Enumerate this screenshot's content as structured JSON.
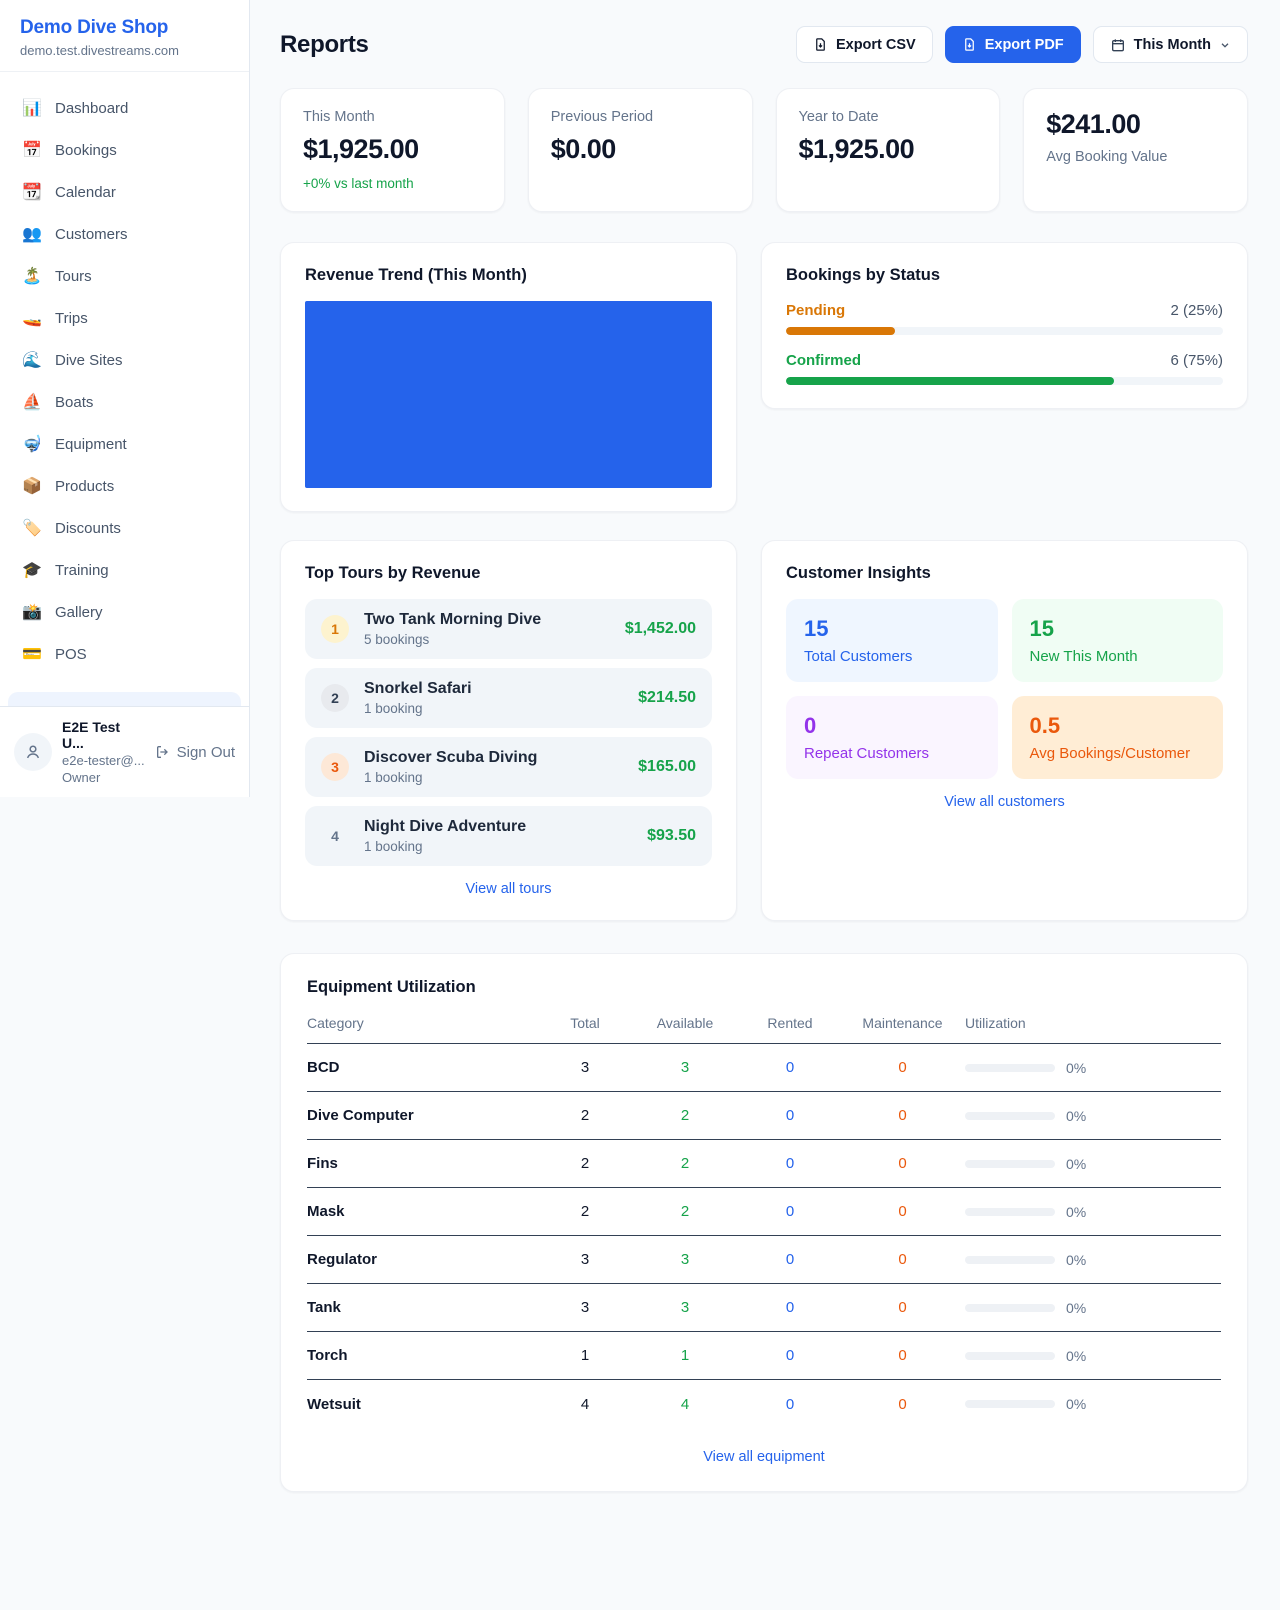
{
  "brand": {
    "name": "Demo Dive Shop",
    "domain": "demo.test.divestreams.com"
  },
  "sidebar": {
    "items": [
      {
        "name": "sidebar-item-dashboard",
        "icon_name": "bar-chart-icon",
        "icon": "📊",
        "label": "Dashboard"
      },
      {
        "name": "sidebar-item-bookings",
        "icon_name": "calendar-icon",
        "icon": "📅",
        "label": "Bookings"
      },
      {
        "name": "sidebar-item-calendar",
        "icon_name": "tear-off-calendar-icon",
        "icon": "📆",
        "label": "Calendar"
      },
      {
        "name": "sidebar-item-customers",
        "icon_name": "people-icon",
        "icon": "👥",
        "label": "Customers"
      },
      {
        "name": "sidebar-item-tours",
        "icon_name": "island-icon",
        "icon": "🏝️",
        "label": "Tours"
      },
      {
        "name": "sidebar-item-trips",
        "icon_name": "speedboat-icon",
        "icon": "🚤",
        "label": "Trips"
      },
      {
        "name": "sidebar-item-dive-sites",
        "icon_name": "wave-icon",
        "icon": "🌊",
        "label": "Dive Sites"
      },
      {
        "name": "sidebar-item-boats",
        "icon_name": "sailboat-icon",
        "icon": "⛵",
        "label": "Boats"
      },
      {
        "name": "sidebar-item-equipment",
        "icon_name": "diving-mask-icon",
        "icon": "🤿",
        "label": "Equipment"
      },
      {
        "name": "sidebar-item-products",
        "icon_name": "package-icon",
        "icon": "📦",
        "label": "Products"
      },
      {
        "name": "sidebar-item-discounts",
        "icon_name": "tag-icon",
        "icon": "🏷️",
        "label": "Discounts"
      },
      {
        "name": "sidebar-item-training",
        "icon_name": "graduation-cap-icon",
        "icon": "🎓",
        "label": "Training"
      },
      {
        "name": "sidebar-item-pos",
        "icon_name": "credit-card-icon",
        "icon": "💳",
        "label": "POS",
        "gallery_fix": ""
      }
    ],
    "gallery_item": {
      "name": "sidebar-item-gallery",
      "icon_name": "camera-icon",
      "icon": "📸",
      "label": "Gallery"
    },
    "user": {
      "name": "E2E Test U...",
      "email": "e2e-tester@...",
      "role": "Owner",
      "sign_out": "Sign Out"
    }
  },
  "header": {
    "title": "Reports",
    "export_csv_label": "Export CSV",
    "export_pdf_label": "Export PDF",
    "period_label": "This Month"
  },
  "stats": [
    {
      "label": "This Month",
      "value": "$1,925.00",
      "delta": "+0% vs last month"
    },
    {
      "label": "Previous Period",
      "value": "$0.00"
    },
    {
      "label": "Year to Date",
      "value": "$1,925.00"
    },
    {
      "label": "Avg Booking Value",
      "value": "$241.00",
      "variant": "value-first"
    }
  ],
  "revenue_trend": {
    "title": "Revenue Trend (This Month)"
  },
  "chart_data": {
    "type": "bar",
    "title": "Revenue Trend (This Month)",
    "categories": [
      "This Month"
    ],
    "values": [
      1925
    ],
    "bar_color": "#2563eb",
    "note": "single solid blue bar filling the entire plot area, no axes or labels visible"
  },
  "bookings_by_status": {
    "title": "Bookings by Status",
    "rows": [
      {
        "label": "Pending",
        "value": "2 (25%)",
        "pct": 25,
        "theme": "theme-orange"
      },
      {
        "label": "Confirmed",
        "value": "6 (75%)",
        "pct": 75,
        "theme": "theme-green"
      }
    ]
  },
  "top_tours": {
    "title": "Top Tours by Revenue",
    "view_all": "View all tours",
    "rows": [
      {
        "rank": "1",
        "rank_class": "rank-1",
        "name": "Two Tank Morning Dive",
        "bookings": "5 bookings",
        "amount": "$1,452.00"
      },
      {
        "rank": "2",
        "rank_class": "rank-2",
        "name": "Snorkel Safari",
        "bookings": "1 booking",
        "amount": "$214.50"
      },
      {
        "rank": "3",
        "rank_class": "rank-3",
        "name": "Discover Scuba Diving",
        "bookings": "1 booking",
        "amount": "$165.00"
      },
      {
        "rank": "4",
        "rank_class": "rank-4",
        "name": "Night Dive Adventure",
        "bookings": "1 booking",
        "amount": "$93.50"
      }
    ]
  },
  "customer_insights": {
    "title": "Customer Insights",
    "view_all": "View all customers",
    "tiles": [
      {
        "value": "15",
        "label": "Total Customers",
        "theme": "blue"
      },
      {
        "value": "15",
        "label": "New This Month",
        "theme": "green"
      },
      {
        "value": "0",
        "label": "Repeat Customers",
        "theme": "purple"
      },
      {
        "value": "0.5",
        "label": "Avg Bookings/Customer",
        "theme": "orange"
      }
    ]
  },
  "equipment": {
    "title": "Equipment Utilization",
    "view_all": "View all equipment",
    "columns": [
      "Category",
      "Total",
      "Available",
      "Rented",
      "Maintenance",
      "Utilization"
    ],
    "rows": [
      {
        "category": "BCD",
        "total": "3",
        "available": "3",
        "rented": "0",
        "maintenance": "0",
        "utilization_pct": 0,
        "utilization": "0%"
      },
      {
        "category": "Dive Computer",
        "total": "2",
        "available": "2",
        "rented": "0",
        "maintenance": "0",
        "utilization_pct": 0,
        "utilization": "0%"
      },
      {
        "category": "Fins",
        "total": "2",
        "available": "2",
        "rented": "0",
        "maintenance": "0",
        "utilization_pct": 0,
        "utilization": "0%"
      },
      {
        "category": "Mask",
        "total": "2",
        "available": "2",
        "rented": "0",
        "maintenance": "0",
        "utilization_pct": 0,
        "utilization": "0%"
      },
      {
        "category": "Regulator",
        "total": "3",
        "available": "3",
        "rented": "0",
        "maintenance": "0",
        "utilization_pct": 0,
        "utilization": "0%"
      },
      {
        "category": "Tank",
        "total": "3",
        "available": "3",
        "rented": "0",
        "maintenance": "0",
        "utilization_pct": 0,
        "utilization": "0%"
      },
      {
        "category": "Torch",
        "total": "1",
        "available": "1",
        "rented": "0",
        "maintenance": "0",
        "utilization_pct": 0,
        "utilization": "0%"
      },
      {
        "category": "Wetsuit",
        "total": "4",
        "available": "4",
        "rented": "0",
        "maintenance": "0",
        "utilization_pct": 0,
        "utilization": "0%"
      }
    ]
  },
  "colors": {
    "accent_blue": "#2563eb",
    "green": "#16a34a",
    "orange": "#d97706",
    "deep_orange": "#ea580c",
    "purple": "#9333ea",
    "gray_text": "#64748b"
  }
}
